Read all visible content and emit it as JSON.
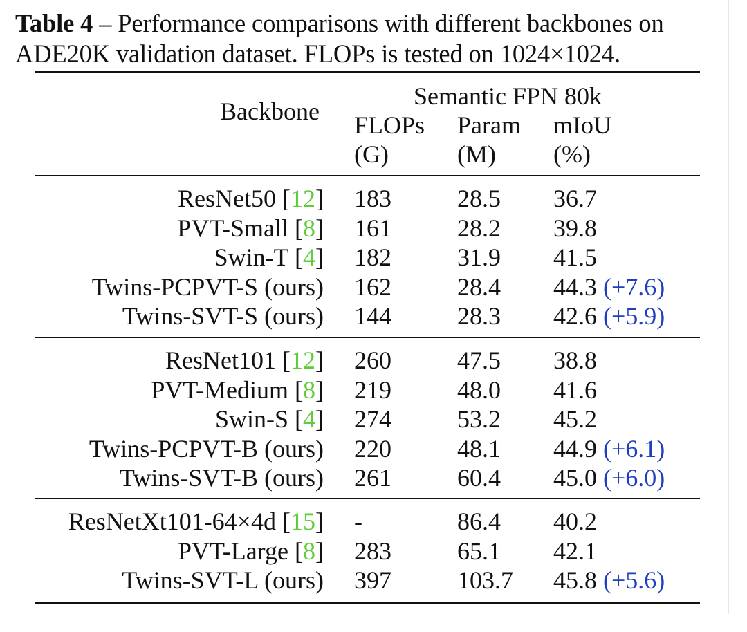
{
  "caption": {
    "label": "Table 4",
    "text": " – Performance comparisons with different backbones on ADE20K validation dataset. FLOPs is tested on 1024×1024."
  },
  "header": {
    "backbone": "Backbone",
    "group": "Semantic FPN 80k",
    "columns": [
      {
        "name": "FLOPs",
        "unit": "(G)"
      },
      {
        "name": "Param",
        "unit": "(M)"
      },
      {
        "name": "mIoU",
        "unit": "(%)"
      }
    ]
  },
  "groups": [
    {
      "rows": [
        {
          "backbone": "ResNet50",
          "cite": "12",
          "flops": "183",
          "param": "28.5",
          "miou": "36.7",
          "gain": ""
        },
        {
          "backbone": "PVT-Small",
          "cite": "8",
          "flops": "161",
          "param": "28.2",
          "miou": "39.8",
          "gain": ""
        },
        {
          "backbone": "Swin-T",
          "cite": "4",
          "flops": "182",
          "param": "31.9",
          "miou": "41.5",
          "gain": ""
        },
        {
          "backbone": "Twins-PCPVT-S (ours)",
          "cite": "",
          "flops": "162",
          "param": "28.4",
          "miou": "44.3",
          "gain": "(+7.6)"
        },
        {
          "backbone": "Twins-SVT-S (ours)",
          "cite": "",
          "flops": "144",
          "param": "28.3",
          "miou": "42.6",
          "gain": "(+5.9)"
        }
      ]
    },
    {
      "rows": [
        {
          "backbone": "ResNet101",
          "cite": "12",
          "flops": "260",
          "param": "47.5",
          "miou": "38.8",
          "gain": ""
        },
        {
          "backbone": "PVT-Medium",
          "cite": "8",
          "flops": "219",
          "param": "48.0",
          "miou": "41.6",
          "gain": ""
        },
        {
          "backbone": "Swin-S",
          "cite": "4",
          "flops": "274",
          "param": "53.2",
          "miou": "45.2",
          "gain": ""
        },
        {
          "backbone": "Twins-PCPVT-B (ours)",
          "cite": "",
          "flops": "220",
          "param": "48.1",
          "miou": "44.9",
          "gain": "(+6.1)"
        },
        {
          "backbone": "Twins-SVT-B (ours)",
          "cite": "",
          "flops": "261",
          "param": "60.4",
          "miou": "45.0",
          "gain": "(+6.0)"
        }
      ]
    },
    {
      "rows": [
        {
          "backbone": "ResNetXt101-64×4d",
          "cite": "15",
          "flops": "-",
          "param": "86.4",
          "miou": "40.2",
          "gain": ""
        },
        {
          "backbone": "PVT-Large",
          "cite": "8",
          "flops": "283",
          "param": "65.1",
          "miou": "42.1",
          "gain": ""
        },
        {
          "backbone": "Twins-SVT-L (ours)",
          "cite": "",
          "flops": "397",
          "param": "103.7",
          "miou": "45.8",
          "gain": "(+5.6)"
        }
      ]
    }
  ],
  "colors": {
    "cite": "#5fcc3a",
    "gain": "#1f3fbf",
    "text": "#111111"
  }
}
